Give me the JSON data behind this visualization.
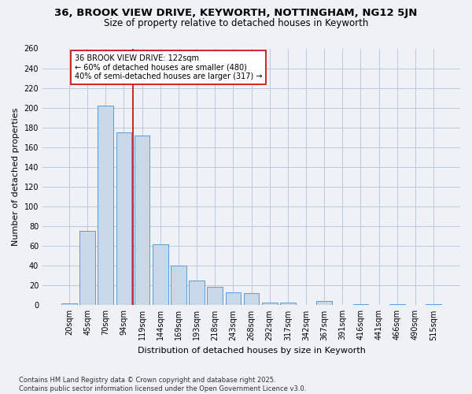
{
  "title_line1": "36, BROOK VIEW DRIVE, KEYWORTH, NOTTINGHAM, NG12 5JN",
  "title_line2": "Size of property relative to detached houses in Keyworth",
  "xlabel": "Distribution of detached houses by size in Keyworth",
  "ylabel": "Number of detached properties",
  "categories": [
    "20sqm",
    "45sqm",
    "70sqm",
    "94sqm",
    "119sqm",
    "144sqm",
    "169sqm",
    "193sqm",
    "218sqm",
    "243sqm",
    "268sqm",
    "292sqm",
    "317sqm",
    "342sqm",
    "367sqm",
    "391sqm",
    "416sqm",
    "441sqm",
    "466sqm",
    "490sqm",
    "515sqm"
  ],
  "values": [
    2,
    75,
    202,
    175,
    172,
    62,
    40,
    25,
    19,
    13,
    12,
    3,
    3,
    0,
    4,
    0,
    1,
    0,
    1,
    0,
    1
  ],
  "bar_color": "#c8d8e8",
  "bar_edge_color": "#5b9bd5",
  "red_line_index": 3.5,
  "red_line_color": "#cc0000",
  "annotation_text": "36 BROOK VIEW DRIVE: 122sqm\n← 60% of detached houses are smaller (480)\n40% of semi-detached houses are larger (317) →",
  "annotation_box_color": "white",
  "annotation_box_edge": "#cc0000",
  "ylim": [
    0,
    260
  ],
  "yticks": [
    0,
    20,
    40,
    60,
    80,
    100,
    120,
    140,
    160,
    180,
    200,
    220,
    240,
    260
  ],
  "footer_line1": "Contains HM Land Registry data © Crown copyright and database right 2025.",
  "footer_line2": "Contains public sector information licensed under the Open Government Licence v3.0.",
  "bg_color": "#eef2f7",
  "grid_color": "#c0c8d8",
  "title_fontsize": 9.5,
  "subtitle_fontsize": 8.5,
  "axis_label_fontsize": 8,
  "tick_fontsize": 7,
  "bar_width": 0.85
}
